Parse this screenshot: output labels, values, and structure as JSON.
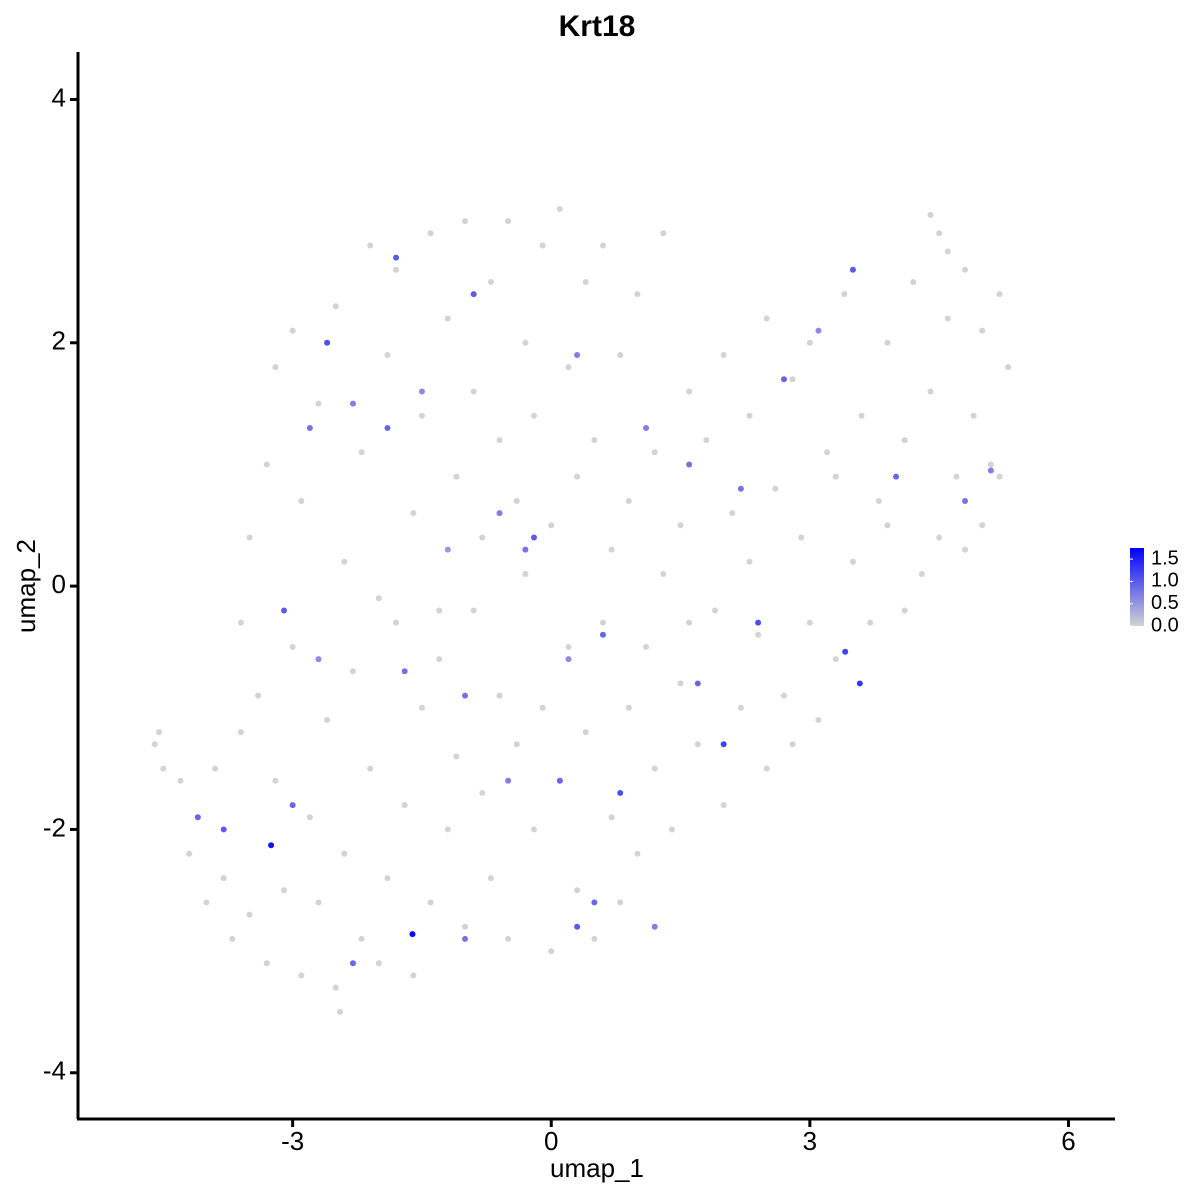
{
  "chart_data": {
    "type": "scatter",
    "title": "Krt18",
    "xlabel": "umap_1",
    "ylabel": "umap_2",
    "xlim": [
      -5.49,
      6.54
    ],
    "ylim": [
      -4.38,
      4.39
    ],
    "xticks": [
      -3,
      0,
      3,
      6
    ],
    "yticks": [
      -4,
      -2,
      0,
      2,
      4
    ],
    "low_color": "#d3d3d3",
    "high_color": "#0000ff",
    "colorlim": [
      0,
      1.75
    ],
    "colorticks": [
      {
        "value": 0,
        "label": "0.0"
      },
      0.5,
      {
        "value": 1,
        "label": "1.0"
      },
      1.5
    ],
    "legend": "right",
    "x": [
      -4.6,
      -4.55,
      -4.5,
      -4.3,
      -4.2,
      -4.1,
      -4.0,
      -3.9,
      -3.8,
      -3.7,
      -3.6,
      -3.5,
      -3.4,
      -3.3,
      -3.2,
      -3.1,
      -3.0,
      -2.9,
      -2.8,
      -2.7,
      -2.6,
      -2.5,
      -2.45,
      -2.4,
      -2.3,
      -2.2,
      -2.1,
      -2.0,
      -1.9,
      -1.8,
      -1.7,
      -1.6,
      -1.5,
      -1.4,
      -1.3,
      -1.2,
      -1.1,
      -1.0,
      -0.9,
      -0.8,
      -0.7,
      -0.6,
      -0.5,
      -0.4,
      -0.3,
      -0.2,
      -0.1,
      0.0,
      0.1,
      0.2,
      0.3,
      0.4,
      0.5,
      0.6,
      0.7,
      0.8,
      0.9,
      1.0,
      1.1,
      1.2,
      1.4,
      1.5,
      1.7,
      1.9,
      2.0,
      2.2,
      2.4,
      2.5,
      2.7,
      2.8,
      3.0,
      3.1,
      3.3,
      3.5,
      3.7,
      3.9,
      4.1,
      4.3,
      4.5,
      4.8,
      5.0,
      5.2,
      -3.6,
      -3.5,
      -3.3,
      -3.2,
      -3.0,
      -2.9,
      -2.7,
      -2.5,
      -2.4,
      -2.2,
      -2.1,
      -2.0,
      -1.9,
      -1.8,
      -1.6,
      -1.5,
      -1.4,
      -1.3,
      -1.2,
      -1.1,
      -1.0,
      -0.9,
      -0.8,
      -0.7,
      -0.6,
      -0.5,
      -0.4,
      -0.3,
      -0.2,
      -0.1,
      0.0,
      0.1,
      0.2,
      0.3,
      0.4,
      0.5,
      0.6,
      0.7,
      0.8,
      0.9,
      1.0,
      1.2,
      1.3,
      1.5,
      1.6,
      1.8,
      2.0,
      2.1,
      2.3,
      2.5,
      2.6,
      2.8,
      3.0,
      3.2,
      3.4,
      3.6,
      3.8,
      3.9,
      4.1,
      4.2,
      4.4,
      4.5,
      4.6,
      4.7,
      4.8,
      4.9,
      5.0,
      5.1,
      5.2,
      5.3,
      4.4,
      4.6,
      1.3,
      1.6,
      2.3,
      2.9,
      3.3,
      -3.25,
      -1.61,
      3.58,
      3.41,
      -4.1,
      -3.8,
      -3.0,
      -2.8,
      -2.6,
      -2.3,
      -1.9,
      -1.8,
      -1.5,
      -1.2,
      -0.9,
      -0.6,
      -0.3,
      0.1,
      0.3,
      0.5,
      0.8,
      1.1,
      1.6,
      2.0,
      2.2,
      2.7,
      3.1,
      3.5,
      4.0,
      4.8,
      5.1,
      -3.1,
      -2.3,
      -1.0,
      -0.5,
      0.2,
      1.2,
      1.7,
      2.4,
      -1.0,
      0.6,
      -2.7,
      -1.7,
      0.3,
      -0.2
    ],
    "y": [
      -1.3,
      -1.2,
      -1.5,
      -1.6,
      -2.2,
      -1.9,
      -2.6,
      -1.5,
      -2.4,
      -2.9,
      -1.2,
      -2.7,
      -0.9,
      -3.1,
      -1.6,
      -2.5,
      -0.5,
      -3.2,
      -1.9,
      -2.6,
      -1.1,
      -3.3,
      -3.5,
      -2.2,
      -0.7,
      -2.9,
      -1.5,
      -3.1,
      -2.4,
      -0.3,
      -1.8,
      -3.2,
      -1.0,
      -2.6,
      -0.6,
      -2.0,
      -1.4,
      -2.8,
      -0.2,
      -1.7,
      -2.4,
      -0.9,
      -2.9,
      -1.3,
      0.1,
      -2.0,
      -1.0,
      -3.0,
      -1.6,
      -0.5,
      -2.5,
      -1.2,
      -2.9,
      -0.3,
      -1.9,
      -2.6,
      -1.0,
      -2.2,
      -0.5,
      -1.5,
      -2.0,
      -0.8,
      -1.3,
      -0.2,
      -1.8,
      -1.0,
      -0.4,
      -1.5,
      -0.9,
      -1.3,
      -0.3,
      -1.1,
      -0.6,
      0.2,
      -0.3,
      0.5,
      -0.2,
      0.1,
      0.4,
      0.3,
      0.5,
      0.9,
      -0.3,
      0.4,
      1.0,
      1.8,
      2.1,
      0.7,
      1.5,
      2.3,
      0.2,
      1.1,
      2.8,
      -0.1,
      1.9,
      2.6,
      0.6,
      1.4,
      2.9,
      -0.2,
      2.2,
      0.9,
      3.0,
      1.6,
      0.4,
      2.5,
      1.2,
      3.0,
      0.7,
      2.0,
      1.4,
      2.8,
      0.5,
      3.1,
      1.8,
      0.9,
      2.5,
      1.2,
      2.8,
      0.3,
      1.9,
      0.7,
      2.4,
      1.1,
      2.9,
      0.5,
      1.6,
      1.2,
      1.9,
      0.6,
      1.4,
      2.2,
      0.8,
      1.7,
      2.0,
      1.1,
      2.4,
      1.4,
      0.7,
      2.0,
      1.2,
      2.5,
      1.6,
      2.9,
      2.2,
      0.9,
      2.6,
      1.4,
      2.1,
      1.0,
      2.4,
      1.8,
      3.05,
      2.75,
      0.1,
      -0.3,
      0.2,
      0.4,
      0.9,
      -2.13,
      -2.86,
      -0.8,
      -0.54,
      -1.9,
      -2.0,
      -1.8,
      1.3,
      2.0,
      1.5,
      1.3,
      2.7,
      1.6,
      0.3,
      2.4,
      0.6,
      0.3,
      -1.6,
      -2.8,
      -2.6,
      -1.7,
      1.3,
      1.0,
      -1.3,
      0.8,
      1.7,
      2.1,
      2.6,
      0.9,
      0.7,
      0.95,
      -0.2,
      -3.1,
      -2.9,
      -1.6,
      -0.6,
      -2.8,
      -0.8,
      -0.3,
      -0.9,
      -0.4,
      -0.6,
      -0.7,
      1.9,
      0.4
    ],
    "values": [
      0,
      0,
      0,
      0,
      0,
      0,
      0,
      0,
      0,
      0,
      0,
      0,
      0,
      0,
      0,
      0,
      0,
      0,
      0,
      0,
      0,
      0,
      0,
      0,
      0,
      0,
      0,
      0,
      0,
      0,
      0,
      0,
      0,
      0,
      0,
      0,
      0,
      0,
      0,
      0,
      0,
      0,
      0,
      0,
      0,
      0,
      0,
      0,
      0,
      0,
      0,
      0,
      0,
      0,
      0,
      0,
      0,
      0,
      0,
      0,
      0,
      0,
      0,
      0,
      0,
      0,
      0,
      0,
      0,
      0,
      0,
      0,
      0,
      0,
      0,
      0,
      0,
      0,
      0,
      0,
      0,
      0,
      0,
      0,
      0,
      0,
      0,
      0,
      0,
      0,
      0,
      0,
      0,
      0,
      0,
      0,
      0,
      0,
      0,
      0,
      0,
      0,
      0,
      0,
      0,
      0,
      0,
      0,
      0,
      0,
      0,
      0,
      0,
      0,
      0,
      0,
      0,
      0,
      0,
      0,
      0,
      0,
      0,
      0,
      0,
      0,
      0,
      0,
      0,
      0,
      0,
      0,
      0,
      0,
      0,
      0,
      0,
      0,
      0,
      0,
      0,
      0,
      0,
      0,
      0,
      0,
      0,
      0,
      0,
      0,
      0,
      0,
      0,
      0,
      0,
      0,
      0,
      0,
      0,
      1.6,
      1.7,
      1.3,
      1.2,
      0.9,
      1.0,
      0.9,
      0.8,
      1.1,
      0.7,
      0.9,
      1.0,
      0.6,
      0.5,
      1.0,
      0.7,
      0.8,
      0.9,
      1.0,
      0.9,
      1.1,
      0.7,
      0.8,
      1.2,
      0.8,
      0.9,
      0.6,
      1.0,
      0.9,
      0.8,
      0.7,
      1.0,
      0.9,
      0.8,
      0.7,
      0.6,
      0.7,
      0.9,
      1.1,
      0.8,
      0.9,
      0.6,
      0.8,
      0.7,
      1.0
    ]
  }
}
